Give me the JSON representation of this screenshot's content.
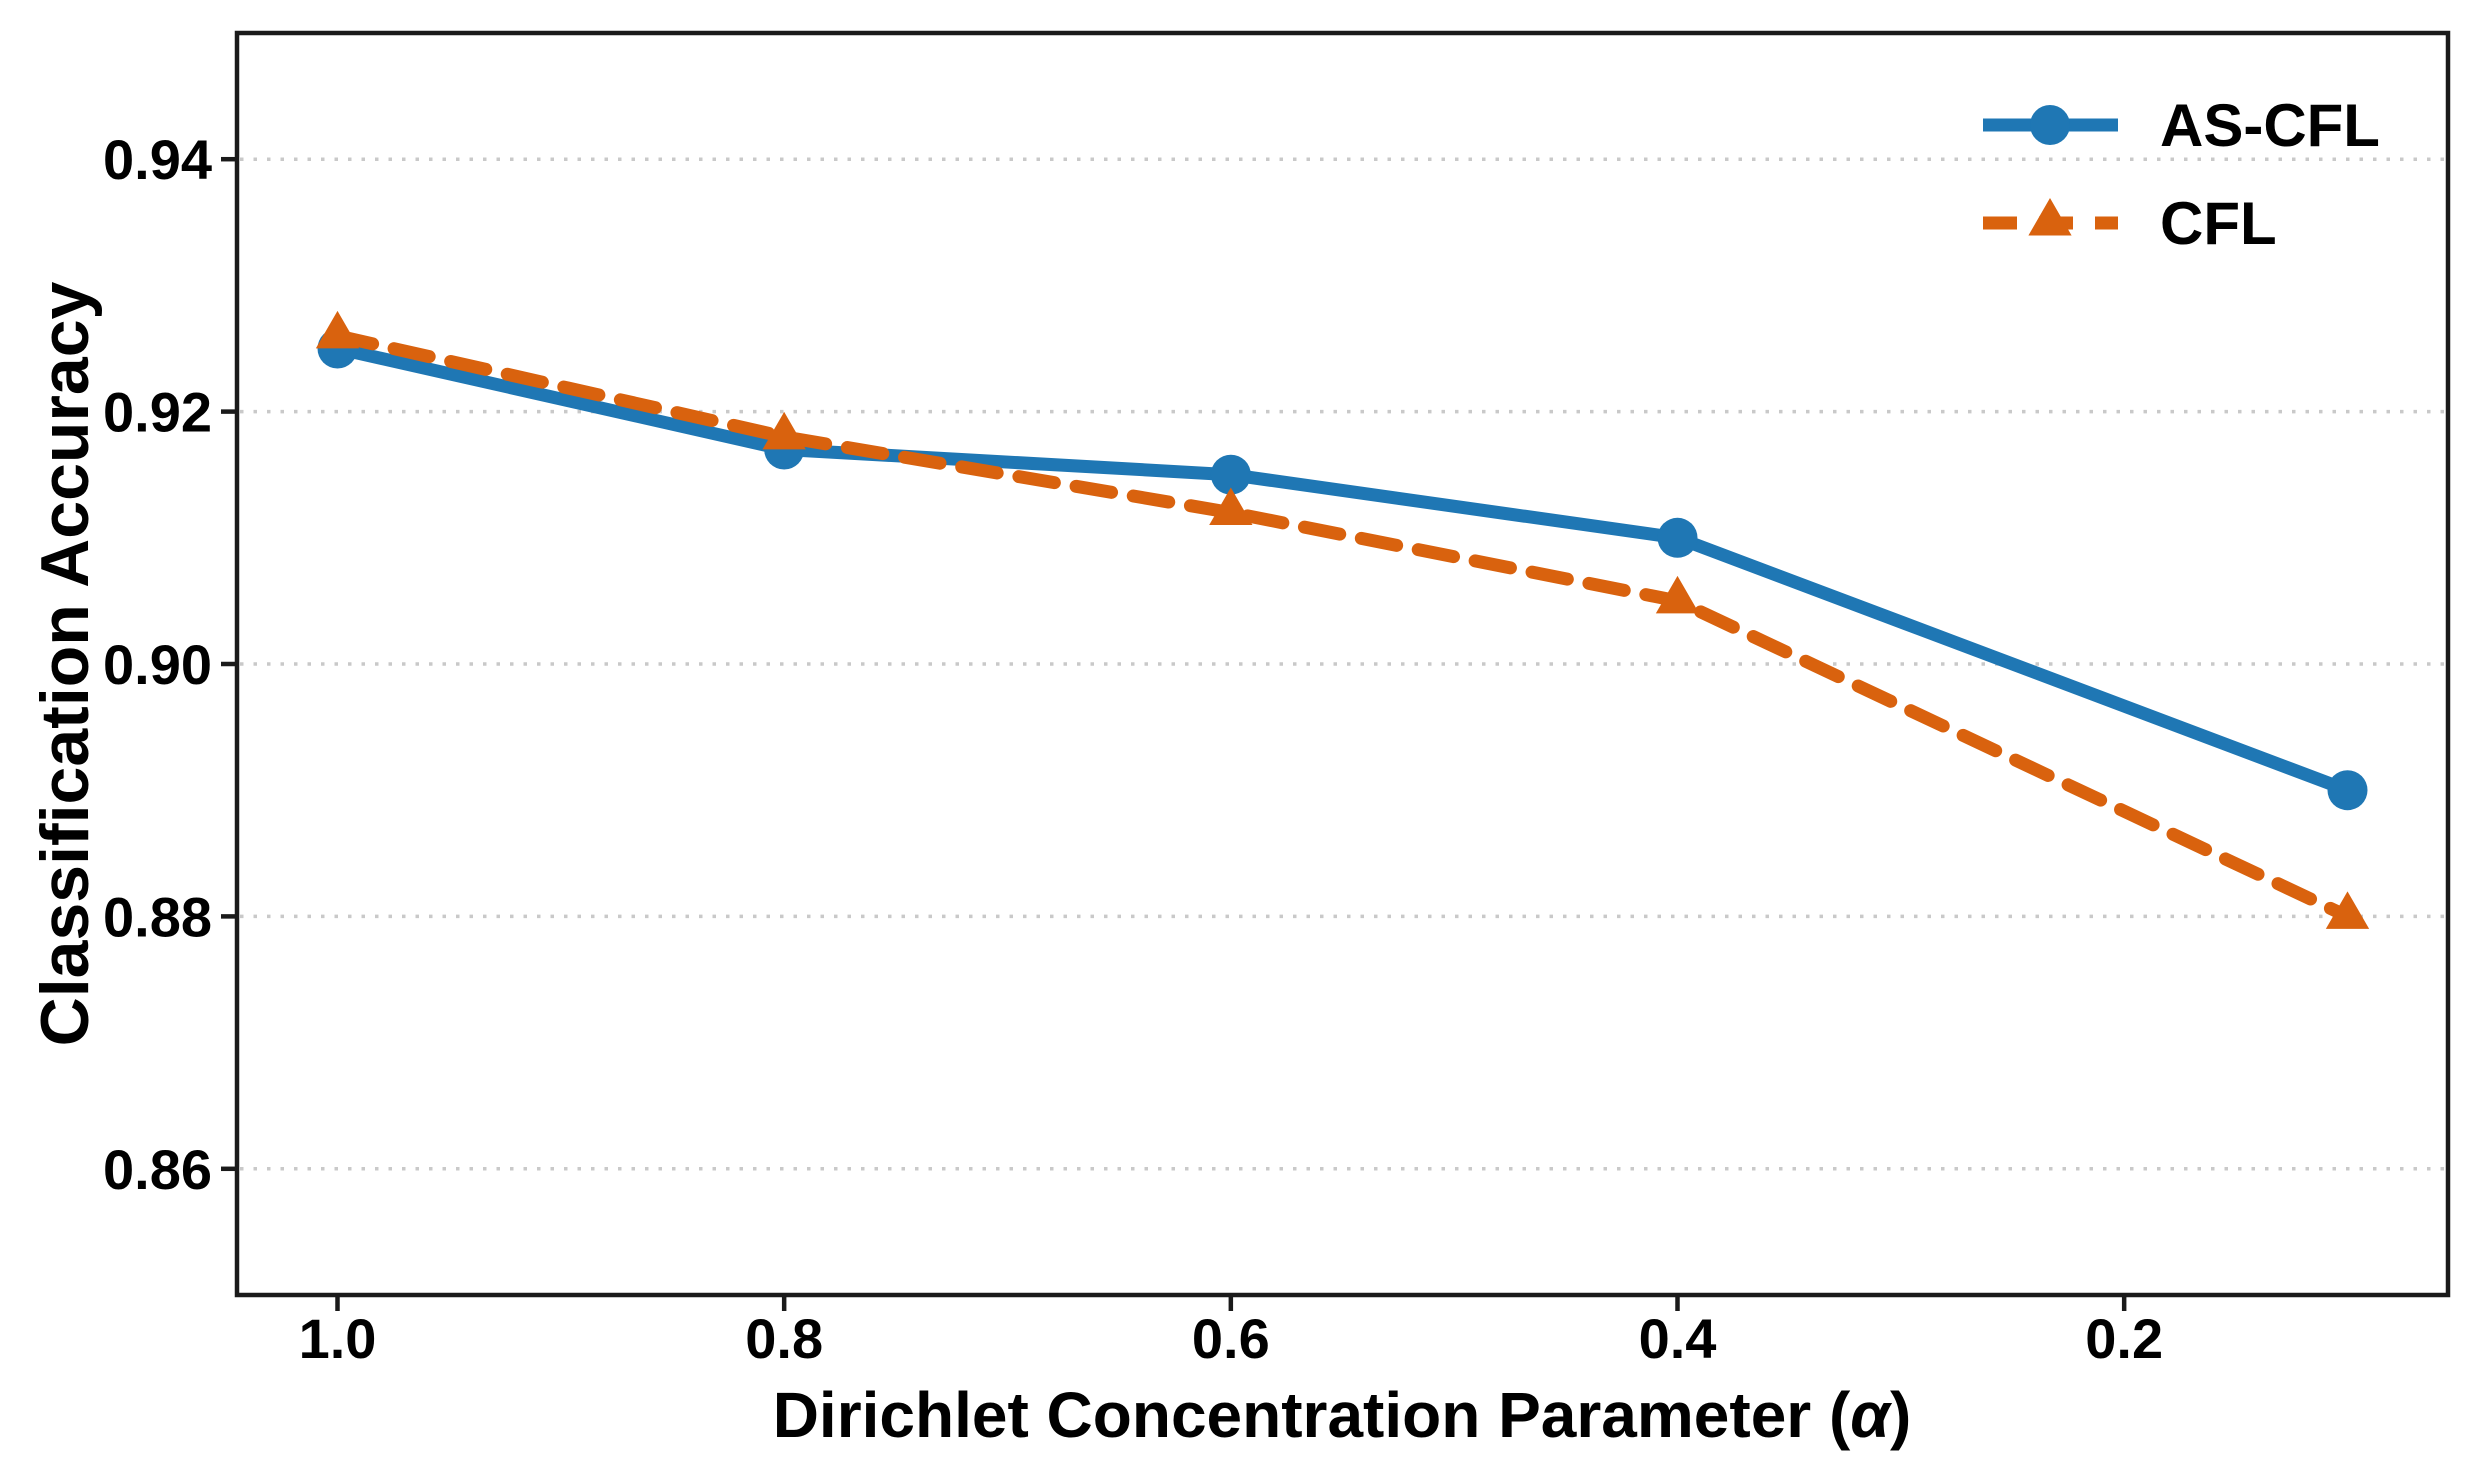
{
  "chart_data": {
    "type": "line",
    "x": [
      1.0,
      0.8,
      0.6,
      0.4,
      0.1
    ],
    "series": [
      {
        "name": "AS-CFL",
        "color": "#1f77b4",
        "line_style": "solid",
        "marker": "circle",
        "values": [
          0.925,
          0.917,
          0.915,
          0.91,
          0.89
        ]
      },
      {
        "name": "CFL",
        "color": "#d9620e",
        "line_style": "dashed",
        "marker": "triangle-up",
        "values": [
          0.926,
          0.918,
          0.912,
          0.905,
          0.88
        ]
      }
    ],
    "title": "",
    "xlabel": "Dirichlet Concentration Parameter (α)",
    "xlabel_parts": {
      "prefix": "Dirichlet Concentration Parameter (",
      "alpha_symbol": "α",
      "suffix": ")"
    },
    "ylabel": "Classification Accuracy",
    "x_axis": {
      "reversed": true,
      "lim": [
        1.045,
        0.055
      ],
      "tick_values": [
        1.0,
        0.8,
        0.6,
        0.4,
        0.2
      ],
      "tick_labels": [
        "1.0",
        "0.8",
        "0.6",
        "0.4",
        "0.2"
      ]
    },
    "y_axis": {
      "lim": [
        0.85,
        0.95
      ],
      "tick_values": [
        0.94,
        0.92,
        0.9,
        0.88,
        0.86
      ],
      "tick_labels": [
        "0.94",
        "0.92",
        "0.90",
        "0.88",
        "0.86"
      ]
    },
    "grid": {
      "axis": "y",
      "style": "dotted",
      "color": "#c9c9c9"
    },
    "legend": {
      "position": "upper right",
      "frame": false,
      "entries": [
        "AS-CFL",
        "CFL"
      ]
    },
    "spine_color": "#1a1a1a",
    "background_color": "#ffffff"
  }
}
